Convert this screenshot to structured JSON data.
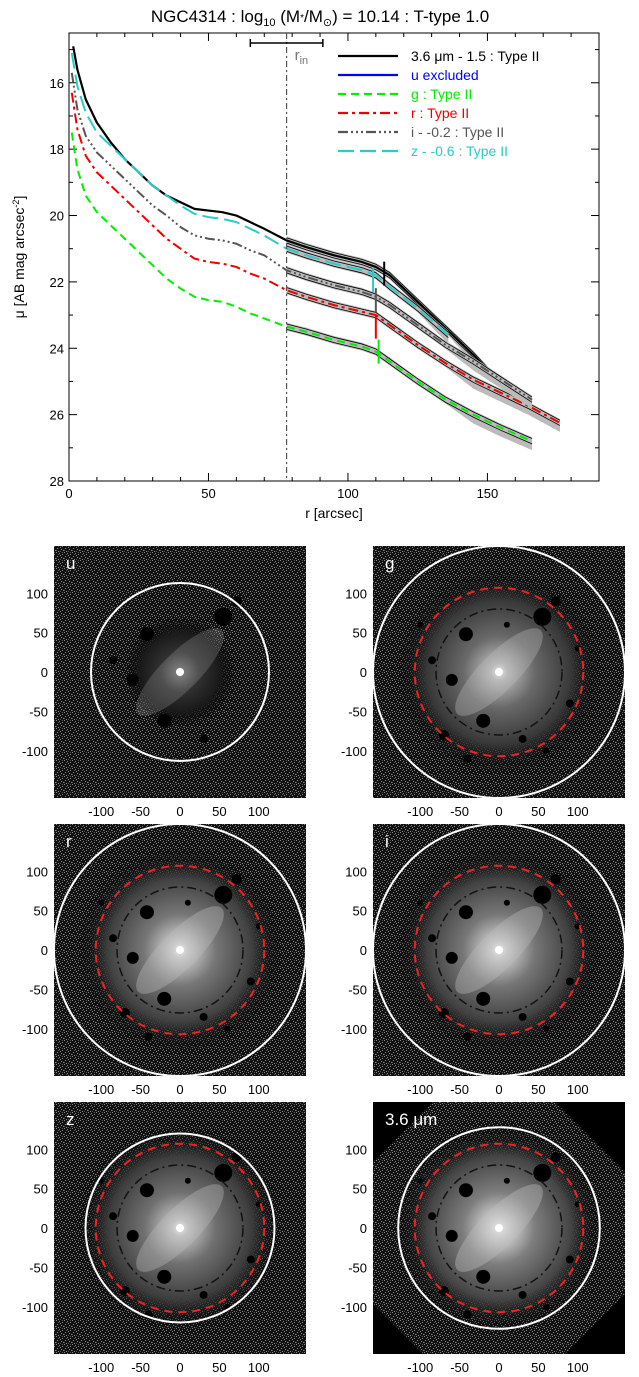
{
  "title_parts": {
    "a": "NGC4314 : log",
    "b": "10",
    "c": " (M",
    "d": "*",
    "e": "/M",
    "f": "⊙",
    "g": ") = 10.14 : T-type 1.0"
  },
  "chart_data": [
    {
      "type": "line",
      "xlabel": "r [arcsec]",
      "ylabel": "μ [AB mag arcsec⁻²]",
      "xlim": [
        0,
        190
      ],
      "ylim": [
        28,
        14.5
      ],
      "y_inverted": true,
      "xticks": [
        0,
        50,
        100,
        150
      ],
      "yticks": [
        16,
        18,
        20,
        22,
        24,
        26,
        28
      ],
      "grid": false,
      "legend_position": "top-right",
      "r_in_label": "r",
      "r_in_sub": "in",
      "r_in": 78,
      "r_in_range": [
        65,
        91
      ],
      "series": [
        {
          "name": "3.6 μm - 1.5 : Type II",
          "color": "#000000",
          "dash": "",
          "width": 2.2,
          "x": [
            1.5,
            3,
            6,
            10,
            15,
            20,
            25,
            30,
            35,
            40,
            45,
            50,
            55,
            60,
            65,
            70,
            78,
            85,
            95,
            105,
            110,
            115,
            125,
            135,
            145,
            151
          ],
          "y": [
            14.9,
            15.6,
            16.5,
            17.2,
            17.8,
            18.3,
            18.7,
            19.1,
            19.4,
            19.6,
            19.8,
            19.85,
            19.9,
            20.0,
            20.2,
            20.4,
            20.75,
            20.95,
            21.2,
            21.4,
            21.55,
            21.8,
            22.6,
            23.4,
            24.2,
            24.75
          ]
        },
        {
          "name": "u excluded",
          "color": "#0000ff",
          "dash": "",
          "width": 2.2,
          "x": [],
          "y": []
        },
        {
          "name": "g : Type II",
          "color": "#00ee00",
          "dash": "8,5",
          "width": 2.0,
          "x": [
            1,
            3,
            6,
            10,
            15,
            20,
            25,
            30,
            35,
            40,
            45,
            50,
            55,
            60,
            65,
            70,
            78,
            85,
            95,
            105,
            110,
            115,
            125,
            135,
            145,
            155,
            166
          ],
          "y": [
            17.5,
            18.6,
            19.4,
            19.9,
            20.3,
            20.7,
            21.1,
            21.5,
            21.9,
            22.2,
            22.45,
            22.55,
            22.6,
            22.75,
            22.95,
            23.1,
            23.35,
            23.5,
            23.75,
            23.95,
            24.1,
            24.4,
            25.0,
            25.55,
            26.0,
            26.4,
            26.8
          ]
        },
        {
          "name": "r : Type II",
          "color": "#ee0000",
          "dash": "10,4,3,4",
          "width": 2.0,
          "x": [
            1,
            3,
            6,
            10,
            15,
            20,
            25,
            30,
            35,
            40,
            45,
            50,
            55,
            60,
            65,
            70,
            78,
            85,
            95,
            105,
            110,
            115,
            125,
            135,
            145,
            155,
            165,
            176
          ],
          "y": [
            16.3,
            17.4,
            18.2,
            18.7,
            19.1,
            19.5,
            19.9,
            20.3,
            20.7,
            21.0,
            21.3,
            21.4,
            21.45,
            21.55,
            21.75,
            21.9,
            22.25,
            22.45,
            22.7,
            22.9,
            23.0,
            23.3,
            23.9,
            24.45,
            24.95,
            25.35,
            25.75,
            26.25
          ]
        },
        {
          "name": "i - -0.2 : Type II",
          "color": "#555555",
          "dash": "10,3,2,3,2,3,2,3",
          "width": 2.0,
          "x": [
            1,
            3,
            6,
            10,
            15,
            20,
            25,
            30,
            35,
            40,
            45,
            50,
            55,
            60,
            65,
            70,
            78,
            85,
            95,
            105,
            110,
            115,
            125,
            135,
            145,
            155,
            166
          ],
          "y": [
            15.7,
            16.8,
            17.6,
            18.1,
            18.5,
            18.9,
            19.3,
            19.7,
            20.0,
            20.35,
            20.6,
            20.7,
            20.75,
            20.85,
            21.05,
            21.2,
            21.65,
            21.85,
            22.1,
            22.3,
            22.45,
            22.7,
            23.3,
            23.9,
            24.4,
            24.95,
            25.55
          ]
        },
        {
          "name": "z - -0.6 : Type II",
          "color": "#2fc9c9",
          "dash": "16,6",
          "width": 2.0,
          "x": [
            1,
            3,
            6,
            10,
            15,
            20,
            25,
            30,
            35,
            40,
            45,
            50,
            55,
            60,
            65,
            70,
            78,
            85,
            95,
            105,
            110,
            115,
            125,
            136
          ],
          "y": [
            15.1,
            16.1,
            16.9,
            17.5,
            17.9,
            18.3,
            18.7,
            19.1,
            19.4,
            19.7,
            19.95,
            20.05,
            20.1,
            20.2,
            20.4,
            20.6,
            21.0,
            21.2,
            21.45,
            21.65,
            21.8,
            22.15,
            22.8,
            23.6
          ]
        }
      ],
      "break_marks": [
        {
          "x": 113,
          "y": 21.75,
          "color": "#000000"
        },
        {
          "x": 109,
          "y": 21.95,
          "color": "#2fc9c9"
        },
        {
          "x": 110,
          "y": 22.55,
          "color": "#555555"
        },
        {
          "x": 110,
          "y": 23.35,
          "color": "#ee0000"
        },
        {
          "x": 111,
          "y": 24.1,
          "color": "#00ee00"
        }
      ]
    },
    {
      "type": "image",
      "panels": [
        {
          "label": "u",
          "white_r": 113,
          "red_r": null,
          "dashdot_r": null,
          "brightness": 0.35,
          "bg": "#0d0d0d"
        },
        {
          "label": "g",
          "white_r": 160,
          "red_r": 107,
          "dashdot_r": 80,
          "brightness": 0.75,
          "bg": "#1a1a1a"
        },
        {
          "label": "r",
          "white_r": 160,
          "red_r": 107,
          "dashdot_r": 80,
          "brightness": 0.85,
          "bg": "#1e1e1e"
        },
        {
          "label": "i",
          "white_r": 160,
          "red_r": 107,
          "dashdot_r": 80,
          "brightness": 0.85,
          "bg": "#1e1e1e"
        },
        {
          "label": "z",
          "white_r": 120,
          "red_r": 107,
          "dashdot_r": 80,
          "brightness": 0.8,
          "bg": "#181818"
        },
        {
          "label": "3.6 μm",
          "white_r": 128,
          "red_r": 107,
          "dashdot_r": 80,
          "brightness": 0.9,
          "bg": "#202020"
        }
      ],
      "xticks": [
        -100,
        -50,
        0,
        50,
        100
      ],
      "yticks": [
        100,
        50,
        0,
        -50,
        -100
      ],
      "xlim": [
        -160,
        160
      ],
      "ylim": [
        -160,
        160
      ]
    }
  ]
}
